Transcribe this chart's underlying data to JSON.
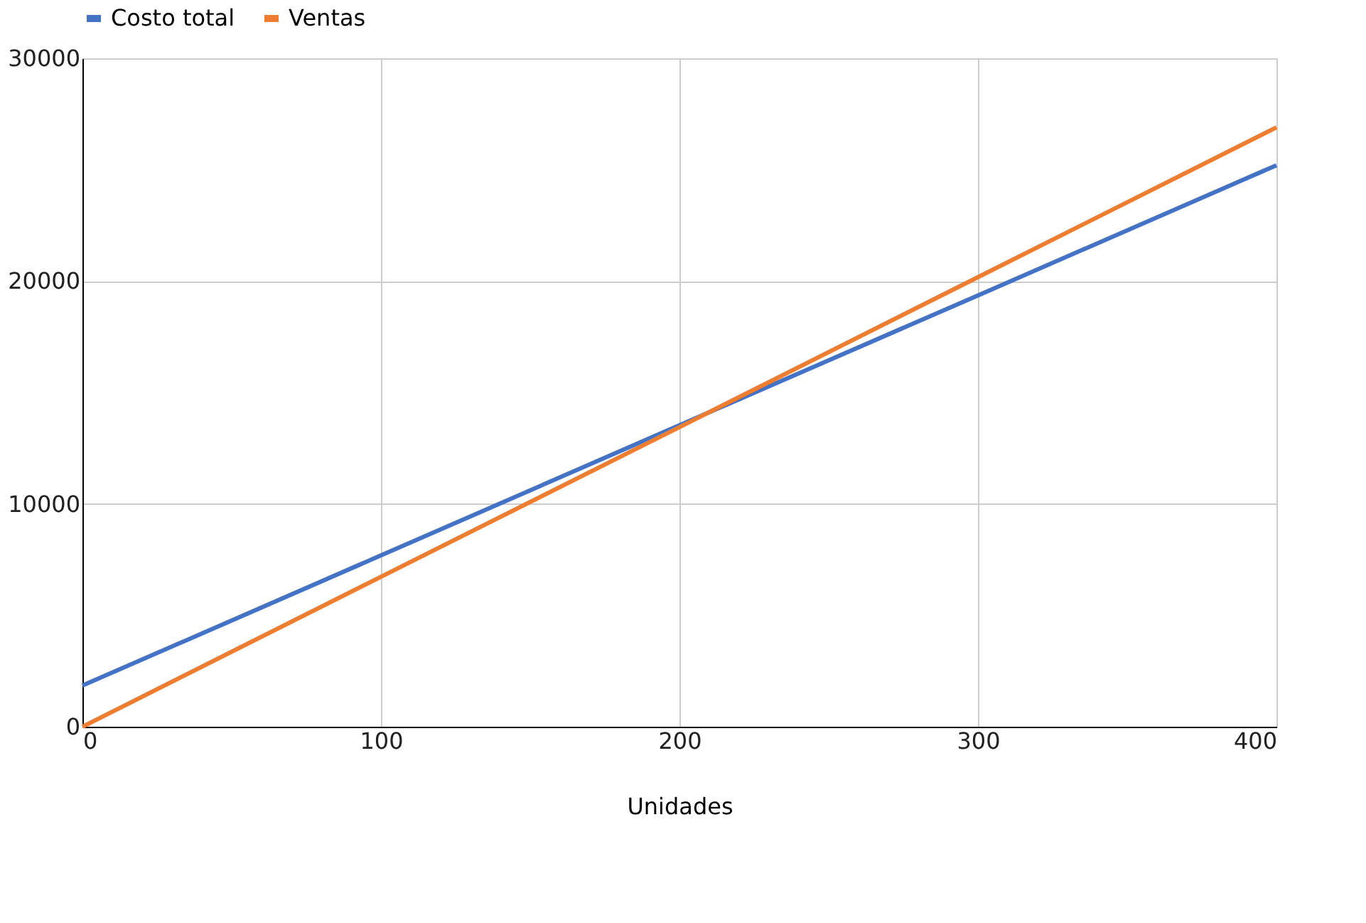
{
  "chart_data": {
    "type": "line",
    "xlabel": "Unidades",
    "x": [
      0,
      100,
      200,
      300,
      400
    ],
    "series": [
      {
        "name": "Costo total",
        "color": "#4472c4",
        "values": [
          1850,
          7690,
          13530,
          19360,
          25200
        ]
      },
      {
        "name": "Ventas",
        "color": "#ed7d31",
        "values": [
          0,
          6730,
          13450,
          20180,
          26900
        ]
      }
    ],
    "xlim": [
      0,
      400
    ],
    "xticks": [
      0,
      100,
      200,
      300,
      400
    ],
    "ylim": [
      0,
      30000
    ],
    "yticks": [
      0,
      10000,
      20000,
      30000
    ],
    "grid": true,
    "legend": "top",
    "marker": "none",
    "line_style": "solid"
  }
}
